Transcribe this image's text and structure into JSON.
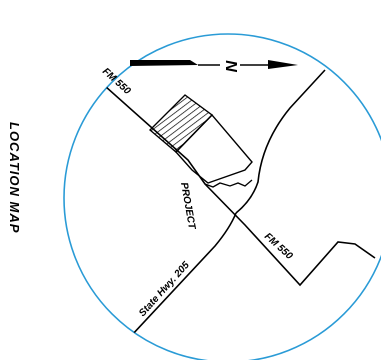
{
  "map": {
    "title": "LOCATION MAP",
    "north_label": "N",
    "roads": {
      "fm550_upper": "FM 550",
      "fm550_lower": "FM 550",
      "state_hwy": "State Hwy. 205"
    },
    "site_label": "PROJECT",
    "colors": {
      "circle": "#2a9bd6",
      "lines": "#000000",
      "background": "#ffffff"
    }
  }
}
